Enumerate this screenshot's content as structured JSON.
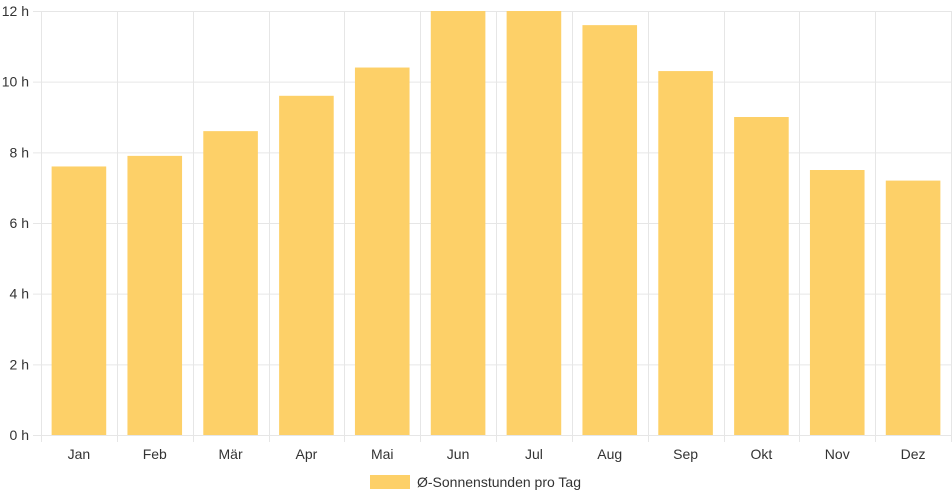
{
  "chart_data": {
    "type": "bar",
    "categories": [
      "Jan",
      "Feb",
      "Mär",
      "Apr",
      "Mai",
      "Jun",
      "Jul",
      "Aug",
      "Sep",
      "Okt",
      "Nov",
      "Dez"
    ],
    "series": [
      {
        "name": "Ø-Sonnenstunden pro Tag",
        "values": [
          7.6,
          7.9,
          8.6,
          9.6,
          10.4,
          12.0,
          12.0,
          11.6,
          10.3,
          9.0,
          7.5,
          7.2
        ],
        "color": "#fdd068"
      }
    ],
    "y_ticks": [
      "0 h",
      "2 h",
      "4 h",
      "6 h",
      "8 h",
      "10 h",
      "12 h"
    ],
    "ylim": [
      0,
      12
    ],
    "grid": true,
    "legend_position": "bottom"
  }
}
